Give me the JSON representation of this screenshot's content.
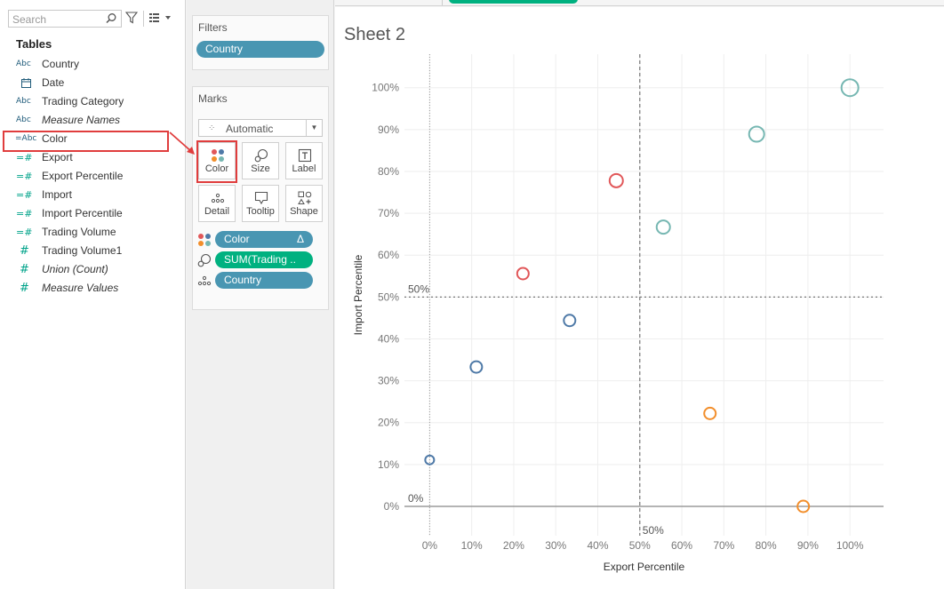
{
  "data_pane": {
    "search_placeholder": "Search",
    "tables_heading": "Tables",
    "fields": [
      {
        "icon": "Abc",
        "label": "Country",
        "type": "dim",
        "italic": false
      },
      {
        "icon": "calendar",
        "label": "Date",
        "type": "date",
        "italic": false
      },
      {
        "icon": "Abc",
        "label": "Trading Category",
        "type": "dim",
        "italic": false
      },
      {
        "icon": "Abc",
        "label": "Measure Names",
        "type": "dim",
        "italic": true
      },
      {
        "icon": "=Abc",
        "label": "Color",
        "type": "calcdim",
        "italic": false
      },
      {
        "icon": "=#",
        "label": "Export",
        "type": "calcmeasure",
        "italic": false
      },
      {
        "icon": "=#",
        "label": "Export Percentile",
        "type": "calcmeasure",
        "italic": false
      },
      {
        "icon": "=#",
        "label": "Import",
        "type": "calcmeasure",
        "italic": false
      },
      {
        "icon": "=#",
        "label": "Import Percentile",
        "type": "calcmeasure",
        "italic": false
      },
      {
        "icon": "=#",
        "label": "Trading Volume",
        "type": "calcmeasure",
        "italic": false
      },
      {
        "icon": "#",
        "label": "Trading Volume1",
        "type": "measure",
        "italic": false
      },
      {
        "icon": "#",
        "label": "Union (Count)",
        "type": "measure",
        "italic": true
      },
      {
        "icon": "#",
        "label": "Measure Values",
        "type": "measure",
        "italic": true
      }
    ]
  },
  "filters": {
    "title": "Filters",
    "pills": [
      "Country"
    ]
  },
  "marks": {
    "title": "Marks",
    "mark_type": "Automatic",
    "buttons": {
      "color": "Color",
      "size": "Size",
      "label": "Label",
      "detail": "Detail",
      "tooltip": "Tooltip",
      "shape": "Shape"
    },
    "shelf": [
      {
        "icon": "color-icon",
        "label": "Color",
        "suffix": "Δ",
        "kind": "dim"
      },
      {
        "icon": "size-icon",
        "label": "SUM(Trading ..",
        "suffix": "",
        "kind": "meas"
      },
      {
        "icon": "detail-icon",
        "label": "Country",
        "suffix": "",
        "kind": "dim"
      }
    ]
  },
  "sheet": {
    "title": "Sheet 2"
  },
  "colors": {
    "blue": "#4e79a7",
    "red": "#e15759",
    "teal": "#76b7b2",
    "orange": "#f28e2b",
    "highlight": "#e03d3d",
    "dim_pill": "#4996b2",
    "measure_pill": "#00b180"
  },
  "chart_data": {
    "type": "scatter",
    "xlabel": "Export Percentile",
    "ylabel": "Import Percentile",
    "xlim": [
      -6,
      108
    ],
    "ylim": [
      -7,
      108
    ],
    "x_ticks": [
      0,
      10,
      20,
      30,
      40,
      50,
      60,
      70,
      80,
      90,
      100
    ],
    "y_ticks": [
      0,
      10,
      20,
      30,
      40,
      50,
      60,
      70,
      80,
      90,
      100
    ],
    "tick_suffix": "%",
    "reference_lines": [
      {
        "axis": "x",
        "value": 0,
        "label": "",
        "style": "dotted"
      },
      {
        "axis": "x",
        "value": 50,
        "label": "50%",
        "style": "dashed"
      },
      {
        "axis": "y",
        "value": 0,
        "label": "0%",
        "style": "solid"
      },
      {
        "axis": "y",
        "value": 50,
        "label": "50%",
        "style": "dotted"
      }
    ],
    "points": [
      {
        "x": 0,
        "y": 11.1,
        "color": "blue",
        "size": 1
      },
      {
        "x": 11.1,
        "y": 33.3,
        "color": "blue",
        "size": 2
      },
      {
        "x": 33.3,
        "y": 44.4,
        "color": "blue",
        "size": 2
      },
      {
        "x": 22.2,
        "y": 55.6,
        "color": "red",
        "size": 2
      },
      {
        "x": 44.4,
        "y": 77.8,
        "color": "red",
        "size": 3
      },
      {
        "x": 55.6,
        "y": 66.7,
        "color": "teal",
        "size": 3
      },
      {
        "x": 77.8,
        "y": 88.9,
        "color": "teal",
        "size": 4
      },
      {
        "x": 100,
        "y": 100,
        "color": "teal",
        "size": 5
      },
      {
        "x": 66.7,
        "y": 22.2,
        "color": "orange",
        "size": 2
      },
      {
        "x": 88.9,
        "y": 0,
        "color": "orange",
        "size": 2
      }
    ]
  }
}
